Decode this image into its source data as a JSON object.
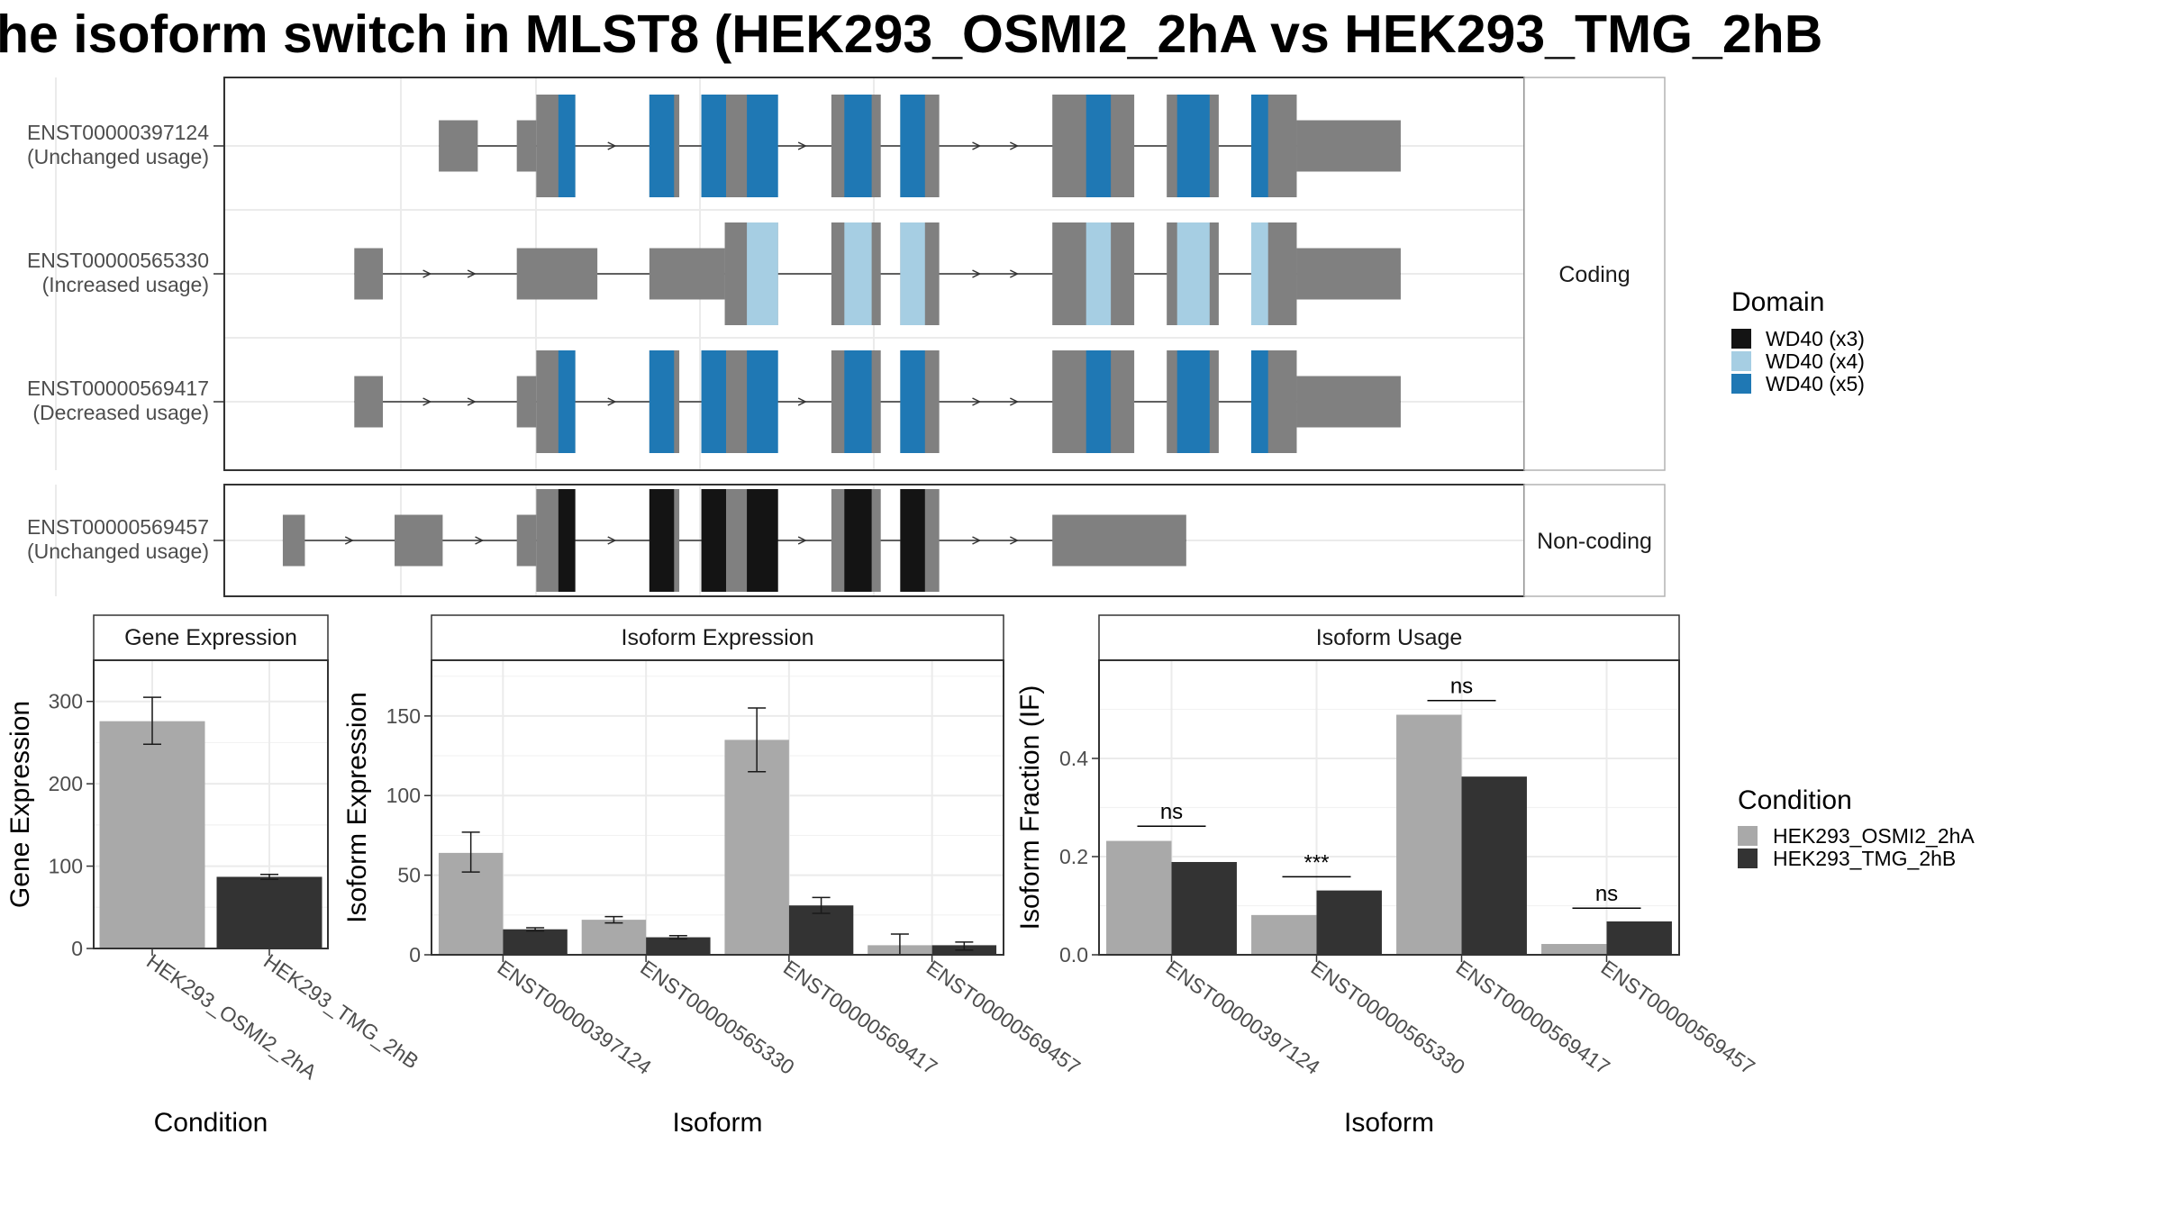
{
  "title": "he isoform switch in MLST8 (HEK293_OSMI2_2hA vs HEK293_TMG_2hB",
  "colors": {
    "exon": "#808080",
    "wd40_x3": "#141414",
    "wd40_x4": "#a6cee3",
    "wd40_x5": "#1f78b4",
    "cond_a": "#a9a9a9",
    "cond_b": "#333333"
  },
  "chart_data": [
    {
      "type": "transcript-structure",
      "x_range": [
        0,
        1000
      ],
      "groups": [
        {
          "strip": "Coding",
          "transcripts": [
            {
              "id": "ENST00000397124",
              "usage": "(Unchanged usage)",
              "start": 165,
              "end": 905,
              "exons": [
                [
                  165,
                  195,
                  "n"
                ],
                [
                  225,
                  240,
                  "n"
                ],
                [
                  240,
                  270,
                  "c"
                ],
                [
                  327,
                  350,
                  "c"
                ],
                [
                  367,
                  423,
                  "c"
                ],
                [
                  467,
                  505,
                  "c"
                ],
                [
                  520,
                  550,
                  "c"
                ],
                [
                  637,
                  700,
                  "c"
                ],
                [
                  725,
                  765,
                  "c"
                ],
                [
                  790,
                  825,
                  "c"
                ],
                [
                  825,
                  905,
                  "n"
                ]
              ],
              "domains": [
                [
                  257,
                  270,
                  "x5"
                ],
                [
                  327,
                  346,
                  "x5"
                ],
                [
                  367,
                  386,
                  "x5"
                ],
                [
                  402,
                  426,
                  "x5"
                ],
                [
                  477,
                  498,
                  "x5"
                ],
                [
                  520,
                  539,
                  "x5"
                ],
                [
                  663,
                  682,
                  "x5"
                ],
                [
                  733,
                  758,
                  "x5"
                ],
                [
                  790,
                  803,
                  "x5"
                ]
              ]
            },
            {
              "id": "ENST00000565330",
              "usage": "(Increased usage)",
              "start": 100,
              "end": 905,
              "exons": [
                [
                  100,
                  122,
                  "n"
                ],
                [
                  225,
                  287,
                  "n"
                ],
                [
                  327,
                  385,
                  "n"
                ],
                [
                  385,
                  426,
                  "c"
                ],
                [
                  467,
                  505,
                  "c"
                ],
                [
                  520,
                  550,
                  "c"
                ],
                [
                  637,
                  700,
                  "c"
                ],
                [
                  725,
                  765,
                  "c"
                ],
                [
                  790,
                  825,
                  "c"
                ],
                [
                  825,
                  905,
                  "n"
                ]
              ],
              "domains": [
                [
                  402,
                  426,
                  "x4"
                ],
                [
                  477,
                  498,
                  "x4"
                ],
                [
                  520,
                  539,
                  "x4"
                ],
                [
                  663,
                  682,
                  "x4"
                ],
                [
                  733,
                  758,
                  "x4"
                ],
                [
                  790,
                  803,
                  "x4"
                ]
              ]
            },
            {
              "id": "ENST00000569417",
              "usage": "(Decreased usage)",
              "start": 100,
              "end": 905,
              "exons": [
                [
                  100,
                  122,
                  "n"
                ],
                [
                  225,
                  240,
                  "n"
                ],
                [
                  240,
                  270,
                  "c"
                ],
                [
                  327,
                  350,
                  "c"
                ],
                [
                  367,
                  423,
                  "c"
                ],
                [
                  467,
                  505,
                  "c"
                ],
                [
                  520,
                  550,
                  "c"
                ],
                [
                  637,
                  700,
                  "c"
                ],
                [
                  725,
                  765,
                  "c"
                ],
                [
                  790,
                  825,
                  "c"
                ],
                [
                  825,
                  905,
                  "n"
                ]
              ],
              "domains": [
                [
                  257,
                  270,
                  "x5"
                ],
                [
                  327,
                  346,
                  "x5"
                ],
                [
                  367,
                  386,
                  "x5"
                ],
                [
                  402,
                  426,
                  "x5"
                ],
                [
                  477,
                  498,
                  "x5"
                ],
                [
                  520,
                  539,
                  "x5"
                ],
                [
                  663,
                  682,
                  "x5"
                ],
                [
                  733,
                  758,
                  "x5"
                ],
                [
                  790,
                  803,
                  "x5"
                ]
              ]
            }
          ]
        },
        {
          "strip": "Non-coding",
          "transcripts": [
            {
              "id": "ENST00000569457",
              "usage": "(Unchanged usage)",
              "start": 45,
              "end": 740,
              "exons": [
                [
                  45,
                  62,
                  "n"
                ],
                [
                  131,
                  168,
                  "n"
                ],
                [
                  225,
                  240,
                  "n"
                ],
                [
                  240,
                  270,
                  "c"
                ],
                [
                  327,
                  350,
                  "c"
                ],
                [
                  367,
                  423,
                  "c"
                ],
                [
                  467,
                  505,
                  "c"
                ],
                [
                  520,
                  550,
                  "c"
                ],
                [
                  637,
                  740,
                  "n"
                ]
              ],
              "domains": [
                [
                  257,
                  270,
                  "x3"
                ],
                [
                  327,
                  346,
                  "x3"
                ],
                [
                  367,
                  386,
                  "x3"
                ],
                [
                  402,
                  426,
                  "x3"
                ],
                [
                  477,
                  498,
                  "x3"
                ],
                [
                  520,
                  539,
                  "x3"
                ]
              ]
            }
          ]
        }
      ],
      "legend": {
        "title": "Domain",
        "position": "right",
        "entries": [
          {
            "key": "x3",
            "label": "WD40 (x3)"
          },
          {
            "key": "x4",
            "label": "WD40 (x4)"
          },
          {
            "key": "x5",
            "label": "WD40 (x5)"
          }
        ]
      }
    },
    {
      "type": "bar",
      "strip": "Gene Expression",
      "xlabel": "Condition",
      "ylabel": "Gene Expression",
      "ylim": [
        0,
        350
      ],
      "yticks": [
        0,
        100,
        200,
        300
      ],
      "categories": [
        "HEK293_OSMI2_2hA",
        "HEK293_TMG_2hB"
      ],
      "values": [
        276,
        87
      ],
      "errors": [
        [
          248,
          305
        ],
        [
          84,
          90
        ]
      ]
    },
    {
      "type": "bar",
      "strip": "Isoform Expression",
      "xlabel": "Isoform",
      "ylabel": "Isoform Expression",
      "ylim": [
        0,
        185
      ],
      "yticks": [
        0,
        50,
        100,
        150
      ],
      "categories": [
        "ENST00000397124",
        "ENST00000565330",
        "ENST00000569417",
        "ENST00000569457"
      ],
      "series": [
        {
          "name": "HEK293_OSMI2_2hA",
          "values": [
            64,
            22,
            135,
            6
          ],
          "errors": [
            [
              52,
              77
            ],
            [
              20,
              24
            ],
            [
              115,
              155
            ],
            [
              0,
              13
            ]
          ]
        },
        {
          "name": "HEK293_TMG_2hB",
          "values": [
            16,
            11,
            31,
            6
          ],
          "errors": [
            [
              15,
              17
            ],
            [
              10,
              12
            ],
            [
              26,
              36
            ],
            [
              3,
              8
            ]
          ]
        }
      ]
    },
    {
      "type": "bar",
      "strip": "Isoform Usage",
      "xlabel": "Isoform",
      "ylabel": "Isoform Fraction (IF)",
      "ylim": [
        0,
        0.6
      ],
      "yticks": [
        "0.0",
        "0.2",
        "0.4"
      ],
      "categories": [
        "ENST00000397124",
        "ENST00000565330",
        "ENST00000569417",
        "ENST00000569457"
      ],
      "series": [
        {
          "name": "HEK293_OSMI2_2hA",
          "values": [
            0.232,
            0.081,
            0.489,
            0.022
          ]
        },
        {
          "name": "HEK293_TMG_2hB",
          "values": [
            0.189,
            0.131,
            0.363,
            0.068
          ]
        }
      ],
      "significance": [
        {
          "label": "ns",
          "y": 0.262
        },
        {
          "label": "***",
          "y": 0.159
        },
        {
          "label": "ns",
          "y": 0.518
        },
        {
          "label": "ns",
          "y": 0.095
        }
      ],
      "legend": {
        "title": "Condition",
        "position": "right",
        "entries": [
          "HEK293_OSMI2_2hA",
          "HEK293_TMG_2hB"
        ]
      }
    }
  ]
}
